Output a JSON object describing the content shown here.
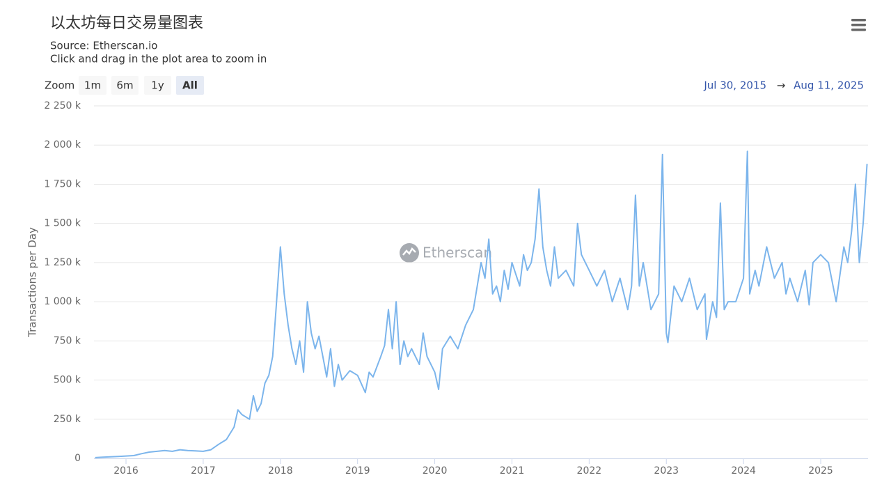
{
  "chart_data": {
    "type": "line",
    "title": "以太坊每日交易量图表",
    "source": "Source: Etherscan.io",
    "subtitle": "Click and drag in the plot area to zoom in",
    "zoom_label": "Zoom",
    "zoom_buttons": [
      "1m",
      "6m",
      "1y",
      "All"
    ],
    "zoom_selected": 3,
    "range_start": "Jul 30, 2015",
    "range_separator": "→",
    "range_end": "Aug 11, 2025",
    "watermark": "Etherscan",
    "y_label": "Transactions per Day",
    "grid": true,
    "xlim": [
      2015.585,
      2025.613
    ],
    "xticks": [
      2016,
      2017,
      2018,
      2019,
      2020,
      2021,
      2022,
      2023,
      2024,
      2025
    ],
    "ylim": [
      0,
      2250000
    ],
    "yticks": [
      0,
      {
        "value": 250000,
        "label": "250 k"
      },
      {
        "value": 500000,
        "label": "500 k"
      },
      {
        "value": 750000,
        "label": "750 k"
      },
      {
        "value": 1000000,
        "label": "1 000 k"
      },
      {
        "value": 1250000,
        "label": "1 250 k"
      },
      {
        "value": 1500000,
        "label": "1 500 k"
      },
      {
        "value": 1750000,
        "label": "1 750 k"
      },
      {
        "value": 2000000,
        "label": "2 000 k"
      },
      {
        "value": 2250000,
        "label": "2 250 k"
      }
    ],
    "series": [
      {
        "name": "Transactions per Day",
        "color": "#7cb5ec",
        "x": [
          2015.6,
          2015.7,
          2015.8,
          2015.9,
          2016.0,
          2016.1,
          2016.2,
          2016.3,
          2016.4,
          2016.5,
          2016.6,
          2016.7,
          2016.8,
          2016.9,
          2017.0,
          2017.1,
          2017.2,
          2017.3,
          2017.4,
          2017.45,
          2017.5,
          2017.6,
          2017.65,
          2017.7,
          2017.75,
          2017.8,
          2017.85,
          2017.9,
          2017.95,
          2018.0,
          2018.05,
          2018.1,
          2018.15,
          2018.2,
          2018.25,
          2018.3,
          2018.35,
          2018.4,
          2018.45,
          2018.5,
          2018.55,
          2018.6,
          2018.65,
          2018.7,
          2018.75,
          2018.8,
          2018.9,
          2019.0,
          2019.1,
          2019.15,
          2019.2,
          2019.3,
          2019.35,
          2019.4,
          2019.45,
          2019.5,
          2019.55,
          2019.6,
          2019.65,
          2019.7,
          2019.8,
          2019.85,
          2019.9,
          2020.0,
          2020.05,
          2020.1,
          2020.2,
          2020.3,
          2020.4,
          2020.5,
          2020.55,
          2020.6,
          2020.65,
          2020.7,
          2020.75,
          2020.8,
          2020.85,
          2020.9,
          2020.95,
          2021.0,
          2021.1,
          2021.15,
          2021.2,
          2021.25,
          2021.3,
          2021.35,
          2021.4,
          2021.45,
          2021.5,
          2021.55,
          2021.6,
          2021.7,
          2021.8,
          2021.85,
          2021.9,
          2022.0,
          2022.1,
          2022.2,
          2022.3,
          2022.4,
          2022.5,
          2022.55,
          2022.6,
          2022.65,
          2022.7,
          2022.8,
          2022.9,
          2022.95,
          2023.0,
          2023.02,
          2023.1,
          2023.2,
          2023.3,
          2023.4,
          2023.5,
          2023.52,
          2023.6,
          2023.65,
          2023.7,
          2023.75,
          2023.8,
          2023.9,
          2024.0,
          2024.05,
          2024.08,
          2024.15,
          2024.2,
          2024.3,
          2024.4,
          2024.5,
          2024.55,
          2024.6,
          2024.7,
          2024.8,
          2024.85,
          2024.9,
          2025.0,
          2025.1,
          2025.2,
          2025.3,
          2025.35,
          2025.4,
          2025.45,
          2025.5,
          2025.55,
          2025.6
        ],
        "values": [
          5000,
          8000,
          10000,
          12000,
          15000,
          18000,
          30000,
          40000,
          45000,
          50000,
          45000,
          55000,
          50000,
          48000,
          45000,
          55000,
          90000,
          120000,
          200000,
          310000,
          280000,
          250000,
          400000,
          300000,
          350000,
          480000,
          530000,
          650000,
          1000000,
          1350000,
          1050000,
          850000,
          700000,
          600000,
          750000,
          550000,
          1000000,
          800000,
          700000,
          780000,
          650000,
          520000,
          700000,
          460000,
          600000,
          500000,
          560000,
          530000,
          420000,
          550000,
          520000,
          650000,
          720000,
          950000,
          700000,
          1000000,
          600000,
          750000,
          650000,
          700000,
          600000,
          800000,
          650000,
          550000,
          440000,
          700000,
          780000,
          700000,
          850000,
          950000,
          1100000,
          1250000,
          1150000,
          1400000,
          1050000,
          1100000,
          1000000,
          1200000,
          1080000,
          1250000,
          1100000,
          1300000,
          1200000,
          1250000,
          1400000,
          1720000,
          1350000,
          1200000,
          1100000,
          1350000,
          1150000,
          1200000,
          1100000,
          1500000,
          1300000,
          1200000,
          1100000,
          1200000,
          1000000,
          1150000,
          950000,
          1100000,
          1680000,
          1100000,
          1250000,
          950000,
          1050000,
          1940000,
          800000,
          740000,
          1100000,
          1000000,
          1150000,
          950000,
          1050000,
          760000,
          1000000,
          900000,
          1630000,
          950000,
          1000000,
          1000000,
          1150000,
          1960000,
          1050000,
          1200000,
          1100000,
          1350000,
          1150000,
          1250000,
          1050000,
          1150000,
          1000000,
          1200000,
          980000,
          1250000,
          1300000,
          1250000,
          1000000,
          1350000,
          1250000,
          1450000,
          1750000,
          1250000,
          1500000,
          1880000
        ]
      }
    ]
  }
}
